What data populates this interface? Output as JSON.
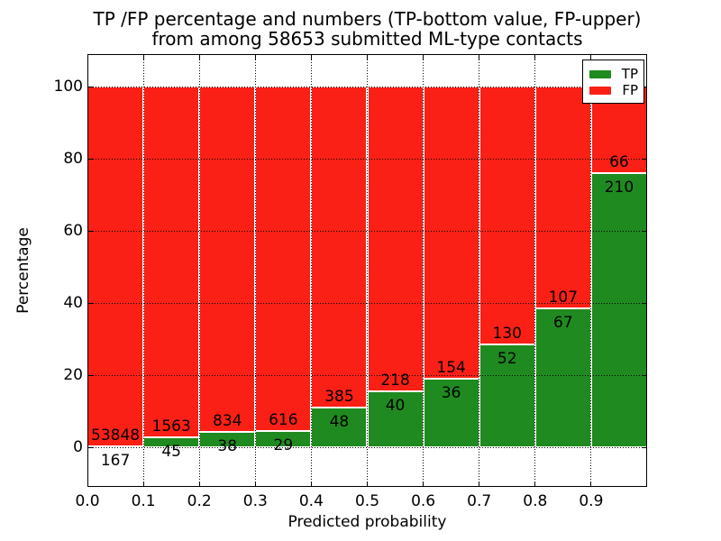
{
  "title": {
    "line1": "TP /FP percentage and numbers (TP-bottom value, FP-upper)",
    "line2": "from among 58653 submitted ML-type contacts"
  },
  "axes": {
    "xlabel": "Predicted probability",
    "ylabel": "Percentage",
    "yticks": [
      0,
      20,
      40,
      60,
      80,
      100
    ],
    "xticklabels": [
      "0.0",
      "0.1",
      "0.2",
      "0.3",
      "0.4",
      "0.5",
      "0.6",
      "0.7",
      "0.8",
      "0.9"
    ],
    "ylim": [
      -11,
      109
    ],
    "xlim": [
      0.0,
      1.0
    ],
    "grid": "dotted"
  },
  "legend": {
    "position": "upper right",
    "items": [
      {
        "label": "TP",
        "color": "#1f8a1f"
      },
      {
        "label": "FP",
        "color": "#fa2015"
      }
    ]
  },
  "chart_data": {
    "type": "bar",
    "stacked": true,
    "normalized": "each bin scaled to 100%, counts shown as labels",
    "title": "TP /FP percentage and numbers (TP-bottom value, FP-upper) from among 58653 submitted ML-type contacts",
    "xlabel": "Predicted probability",
    "ylabel": "Percentage",
    "xlim": [
      0.0,
      1.0
    ],
    "ylim": [
      -11,
      109
    ],
    "bin_width": 0.1,
    "categories": [
      "0.0",
      "0.1",
      "0.2",
      "0.3",
      "0.4",
      "0.5",
      "0.6",
      "0.7",
      "0.8",
      "0.9"
    ],
    "series": [
      {
        "name": "TP",
        "color": "#1f8a1f",
        "counts": [
          167,
          45,
          38,
          29,
          48,
          40,
          36,
          52,
          67,
          210
        ]
      },
      {
        "name": "FP",
        "color": "#fa2015",
        "counts": [
          53848,
          1563,
          834,
          616,
          385,
          218,
          154,
          130,
          107,
          66
        ]
      }
    ],
    "tp_percent_of_bin": [
      0.31,
      2.8,
      4.36,
      4.5,
      11.09,
      15.5,
      18.95,
      28.57,
      38.51,
      76.09
    ],
    "total_contacts": 58653,
    "legend_position": "upper right",
    "grid": "dotted"
  },
  "colors": {
    "tp": "#1f8a1f",
    "fp": "#fa2015",
    "bar_edge": "#ffffff",
    "grid": "#000000",
    "frame": "#000000",
    "background": "#ffffff",
    "text": "#000000"
  }
}
